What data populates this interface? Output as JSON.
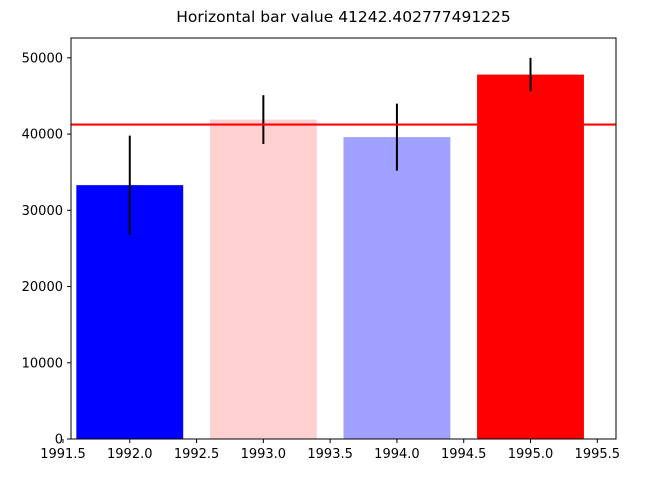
{
  "chart_data": {
    "type": "bar",
    "title": "Horizontal bar value 41242.402777491225",
    "xlabel": "",
    "ylabel": "",
    "categories": [
      1992.0,
      1993.0,
      1994.0,
      1995.0
    ],
    "values": [
      33300,
      41900,
      39600,
      47800
    ],
    "errors": [
      6500,
      3200,
      4400,
      2200
    ],
    "bar_colors": [
      "#0000ff",
      "#ffd0d0",
      "#a0a0ff",
      "#ff0000"
    ],
    "bar_width": 0.8,
    "hline": {
      "value": 41242.402777491225,
      "color": "#ff0000"
    },
    "xlim": [
      1991.56,
      1995.64
    ],
    "ylim": [
      0,
      52600
    ],
    "x_ticks": [
      1991.5,
      1992.0,
      1992.5,
      1993.0,
      1993.5,
      1994.0,
      1994.5,
      1995.0,
      1995.5
    ],
    "x_tick_labels": [
      "1991.5",
      "1992.0",
      "1992.5",
      "1993.0",
      "1993.5",
      "1994.0",
      "1994.5",
      "1995.0",
      "1995.5"
    ],
    "y_ticks": [
      0,
      10000,
      20000,
      30000,
      40000,
      50000
    ],
    "y_tick_labels": [
      "0",
      "10000",
      "20000",
      "30000",
      "40000",
      "50000"
    ],
    "grid": false,
    "legend": "none"
  }
}
